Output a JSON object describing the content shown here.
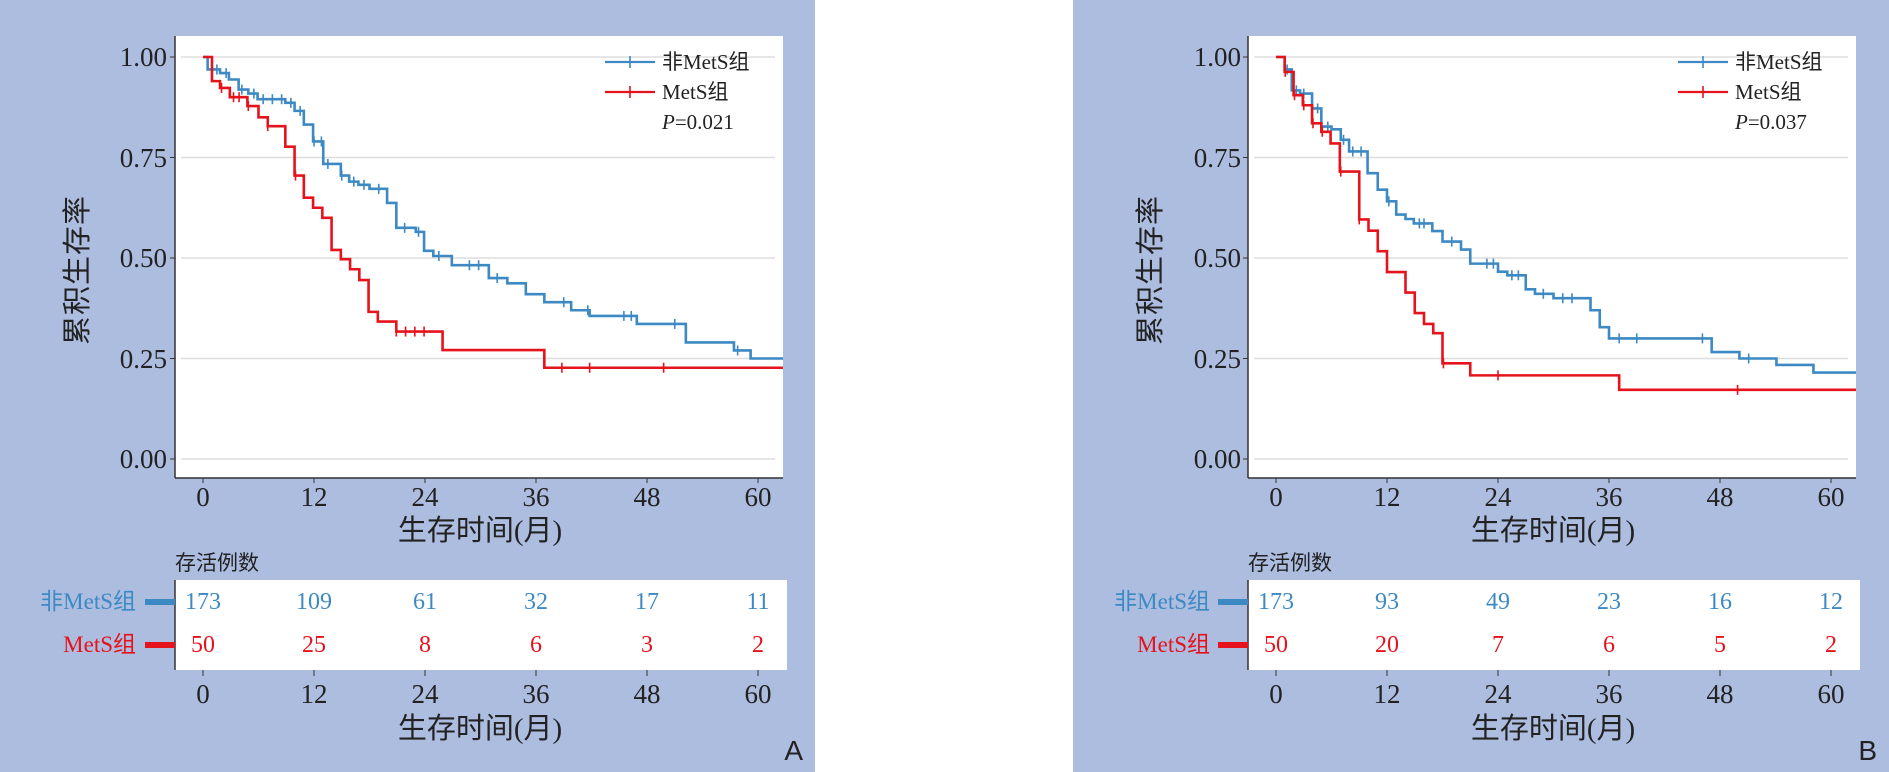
{
  "colors": {
    "background": "#adbde0",
    "non_mets": "#3d89c3",
    "mets": "#e5131b",
    "grid": "#dddddd",
    "axis": "#333333"
  },
  "chart_data": [
    {
      "panel_label": "A",
      "type": "line",
      "subtype": "kaplan-meier",
      "ylabel": "累积生存率",
      "xlabel": "生存时间(月)",
      "yticks": [
        "0.00",
        "0.25",
        "0.50",
        "0.75",
        "1.00"
      ],
      "ytick_values": [
        0,
        0.25,
        0.5,
        0.75,
        1.0
      ],
      "xticks": [
        "0",
        "12",
        "24",
        "36",
        "48",
        "60"
      ],
      "xtick_values": [
        0,
        12,
        24,
        36,
        48,
        60
      ],
      "xlim": [
        -3,
        63
      ],
      "ylim": [
        -0.05,
        1.05
      ],
      "grid": "horizontal",
      "legend_position": "top-right",
      "p_value_prefix": "P",
      "p_value_text": "=0.021",
      "series": [
        {
          "name": "非MetS组",
          "key": "non_mets",
          "steps": [
            [
              0,
              1
            ],
            [
              0.5,
              0.969
            ],
            [
              1.84,
              0.96
            ],
            [
              2.8,
              0.944
            ],
            [
              3.85,
              0.919
            ],
            [
              4.9,
              0.909
            ],
            [
              5.9,
              0.895
            ],
            [
              8.9,
              0.886
            ],
            [
              9.9,
              0.866
            ],
            [
              10.9,
              0.832
            ],
            [
              11.9,
              0.79
            ],
            [
              13.0,
              0.734
            ],
            [
              14.9,
              0.705
            ],
            [
              15.8,
              0.69
            ],
            [
              16.8,
              0.682
            ],
            [
              18.0,
              0.672
            ],
            [
              19.9,
              0.637
            ],
            [
              20.9,
              0.575
            ],
            [
              23.0,
              0.565
            ],
            [
              23.9,
              0.518
            ],
            [
              24.9,
              0.505
            ],
            [
              26.9,
              0.482
            ],
            [
              30.9,
              0.45
            ],
            [
              32.9,
              0.437
            ],
            [
              34.9,
              0.41
            ],
            [
              36.9,
              0.39
            ],
            [
              39.8,
              0.37
            ],
            [
              41.8,
              0.356
            ],
            [
              46.9,
              0.336
            ],
            [
              52.2,
              0.29
            ],
            [
              57.4,
              0.27
            ],
            [
              59.2,
              0.25
            ]
          ],
          "censored": [
            1.5,
            2.5,
            4.2,
            5.5,
            6.5,
            7.5,
            8.5,
            9.5,
            10.5,
            12.0,
            12.8,
            13.5,
            15.0,
            16.3,
            17.4,
            19.0,
            21.8,
            23.3,
            25.5,
            28.8,
            29.8,
            31.8,
            39.0,
            41.6,
            45.5,
            46.3,
            51.0,
            57.8
          ],
          "end_time": 63
        },
        {
          "name": "MetS组",
          "key": "mets",
          "steps": [
            [
              0,
              1
            ],
            [
              0.97,
              0.94
            ],
            [
              1.84,
              0.923
            ],
            [
              2.9,
              0.9
            ],
            [
              4.8,
              0.878
            ],
            [
              6.0,
              0.85
            ],
            [
              7.0,
              0.828
            ],
            [
              8.9,
              0.777
            ],
            [
              9.9,
              0.705
            ],
            [
              10.9,
              0.65
            ],
            [
              11.9,
              0.625
            ],
            [
              12.9,
              0.6
            ],
            [
              13.9,
              0.52
            ],
            [
              14.9,
              0.497
            ],
            [
              15.9,
              0.472
            ],
            [
              16.9,
              0.445
            ],
            [
              17.9,
              0.366
            ],
            [
              18.9,
              0.342
            ],
            [
              20.9,
              0.317
            ],
            [
              25.9,
              0.271
            ],
            [
              36.9,
              0.227
            ]
          ],
          "censored": [
            2.0,
            3.3,
            3.9,
            4.9,
            7.0,
            10.0,
            20.9,
            21.9,
            22.9,
            23.9,
            38.8,
            41.8,
            49.8
          ],
          "end_time": 63
        }
      ],
      "risk_table": {
        "title": "存活例数",
        "xlabel": "生存时间(月)",
        "times": [
          "0",
          "12",
          "24",
          "36",
          "48",
          "60"
        ],
        "rows": [
          {
            "name": "非MetS组",
            "key": "non_mets",
            "values": [
              "173",
              "109",
              "61",
              "32",
              "17",
              "11"
            ]
          },
          {
            "name": "MetS组",
            "key": "mets",
            "values": [
              "50",
              "25",
              "8",
              "6",
              "3",
              "2"
            ]
          }
        ]
      }
    },
    {
      "panel_label": "B",
      "type": "line",
      "subtype": "kaplan-meier",
      "ylabel": "累积生存率",
      "xlabel": "生存时间(月)",
      "yticks": [
        "0.00",
        "0.25",
        "0.50",
        "0.75",
        "1.00"
      ],
      "ytick_values": [
        0,
        0.25,
        0.5,
        0.75,
        1.0
      ],
      "xticks": [
        "0",
        "12",
        "24",
        "36",
        "48",
        "60"
      ],
      "xtick_values": [
        0,
        12,
        24,
        36,
        48,
        60
      ],
      "xlim": [
        -3,
        63
      ],
      "ylim": [
        -0.05,
        1.05
      ],
      "grid": "horizontal",
      "legend_position": "top-right",
      "p_value_prefix": "P",
      "p_value_text": "=0.037",
      "series": [
        {
          "name": "非MetS组",
          "key": "non_mets",
          "steps": [
            [
              0,
              1
            ],
            [
              0.94,
              0.969
            ],
            [
              1.7,
              0.917
            ],
            [
              2.6,
              0.909
            ],
            [
              3.9,
              0.872
            ],
            [
              4.9,
              0.827
            ],
            [
              6.0,
              0.82
            ],
            [
              7.0,
              0.794
            ],
            [
              7.9,
              0.765
            ],
            [
              9.9,
              0.711
            ],
            [
              11.0,
              0.67
            ],
            [
              12.0,
              0.641
            ],
            [
              13.0,
              0.608
            ],
            [
              14.0,
              0.597
            ],
            [
              14.9,
              0.586
            ],
            [
              16.9,
              0.567
            ],
            [
              18.0,
              0.541
            ],
            [
              20.0,
              0.521
            ],
            [
              21.0,
              0.486
            ],
            [
              24.0,
              0.466
            ],
            [
              25.0,
              0.457
            ],
            [
              27.0,
              0.422
            ],
            [
              28.0,
              0.411
            ],
            [
              30.0,
              0.4
            ],
            [
              34.0,
              0.37
            ],
            [
              35.0,
              0.328
            ],
            [
              36.0,
              0.3
            ],
            [
              47.1,
              0.266
            ],
            [
              50.1,
              0.25
            ],
            [
              54.1,
              0.234
            ],
            [
              58.1,
              0.215
            ]
          ],
          "censored": [
            1.2,
            2.2,
            3.0,
            4.5,
            5.6,
            7.3,
            8.3,
            9.2,
            12.2,
            15.5,
            16.0,
            19.0,
            22.8,
            23.5,
            25.5,
            26.2,
            28.9,
            31.0,
            32.0,
            37.1,
            39.0,
            46.1,
            51.1
          ],
          "end_time": 63
        },
        {
          "name": "MetS组",
          "key": "mets",
          "steps": [
            [
              0,
              1
            ],
            [
              0.94,
              0.963
            ],
            [
              1.9,
              0.905
            ],
            [
              2.9,
              0.88
            ],
            [
              3.9,
              0.835
            ],
            [
              4.9,
              0.814
            ],
            [
              5.9,
              0.785
            ],
            [
              6.9,
              0.715
            ],
            [
              9.0,
              0.596
            ],
            [
              10.0,
              0.568
            ],
            [
              11.0,
              0.517
            ],
            [
              12.0,
              0.465
            ],
            [
              14.0,
              0.414
            ],
            [
              15.0,
              0.363
            ],
            [
              16.0,
              0.336
            ],
            [
              17.0,
              0.313
            ],
            [
              18.0,
              0.238
            ],
            [
              21.0,
              0.208
            ],
            [
              37.1,
              0.172
            ]
          ],
          "censored": [
            1.0,
            2.0,
            3.0,
            4.0,
            5.0,
            7.0,
            9.0,
            18.1,
            24.0,
            49.9
          ],
          "end_time": 63
        }
      ],
      "risk_table": {
        "title": "存活例数",
        "xlabel": "生存时间(月)",
        "times": [
          "0",
          "12",
          "24",
          "36",
          "48",
          "60"
        ],
        "rows": [
          {
            "name": "非MetS组",
            "key": "non_mets",
            "values": [
              "173",
              "93",
              "49",
              "23",
              "16",
              "12"
            ]
          },
          {
            "name": "MetS组",
            "key": "mets",
            "values": [
              "50",
              "20",
              "7",
              "6",
              "5",
              "2"
            ]
          }
        ]
      }
    }
  ]
}
